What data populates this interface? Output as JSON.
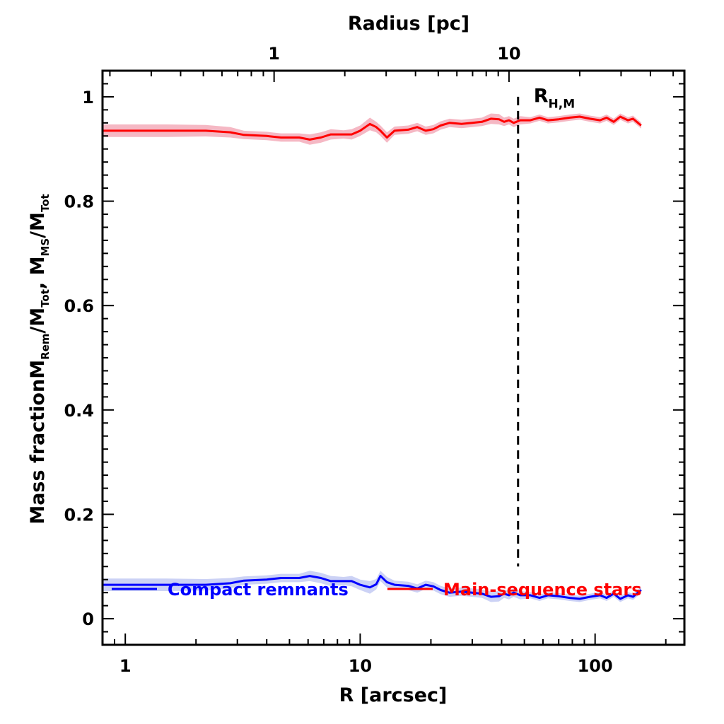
{
  "chart_data": {
    "type": "line",
    "title": "",
    "xlabel": "R [arcsec]",
    "ylabel": "Mass fraction",
    "ylabel_ratio": {
      "rem": {
        "num": "M",
        "num_sub": "Rem",
        "den": "M",
        "den_sub": "Tot"
      },
      "ms": {
        "num": "M",
        "num_sub": "MS",
        "den": "M",
        "den_sub": "Tot"
      }
    },
    "top_xlabel": "Radius [pc]",
    "xscale": "log",
    "xlim": [
      0.8,
      240
    ],
    "ylim": [
      -0.05,
      1.05
    ],
    "top_axis": {
      "arcsec_per_pc": 4.3,
      "tick_values": [
        1,
        10
      ],
      "tick_labels": [
        "1",
        "10"
      ]
    },
    "x_tick_values": [
      1,
      10,
      100
    ],
    "x_tick_labels": [
      "1",
      "10",
      "100"
    ],
    "y_tick_values": [
      0,
      0.2,
      0.4,
      0.6,
      0.8,
      1.0
    ],
    "y_tick_labels": [
      "0",
      "0.2",
      "0.4",
      "0.6",
      "0.8",
      "1"
    ],
    "annotation": {
      "x": 47,
      "main": "R",
      "sub": "H,M",
      "y": 0.96
    },
    "legend_position": "bottom",
    "series": [
      {
        "name": "Main-sequence stars",
        "color": "#ff0000",
        "band_color": "#f5b8c4",
        "x": [
          0.8,
          1.0,
          1.5,
          2.2,
          2.8,
          3.2,
          4.0,
          4.6,
          5.5,
          6.1,
          6.8,
          7.5,
          8.5,
          9.2,
          10.0,
          11.0,
          11.7,
          12.2,
          13.0,
          14.0,
          16.0,
          17.5,
          19.0,
          20.5,
          22.0,
          24.0,
          27.0,
          30.0,
          33.0,
          36.0,
          39.0,
          41.0,
          43.0,
          45.0,
          48.0,
          53.0,
          58.0,
          63.0,
          70.0,
          78.0,
          86.0,
          95.0,
          105.0,
          112.0,
          120.0,
          128.0,
          138.0,
          145.0,
          157.0
        ],
        "y": [
          0.935,
          0.935,
          0.935,
          0.935,
          0.932,
          0.927,
          0.925,
          0.922,
          0.922,
          0.918,
          0.922,
          0.928,
          0.928,
          0.928,
          0.935,
          0.948,
          0.942,
          0.935,
          0.922,
          0.935,
          0.937,
          0.942,
          0.935,
          0.938,
          0.945,
          0.95,
          0.948,
          0.95,
          0.952,
          0.958,
          0.957,
          0.952,
          0.955,
          0.95,
          0.955,
          0.955,
          0.96,
          0.955,
          0.957,
          0.96,
          0.962,
          0.958,
          0.955,
          0.96,
          0.952,
          0.962,
          0.955,
          0.958,
          0.945
        ],
        "band": [
          0.012,
          0.012,
          0.012,
          0.011,
          0.01,
          0.008,
          0.008,
          0.008,
          0.008,
          0.01,
          0.01,
          0.01,
          0.008,
          0.01,
          0.01,
          0.012,
          0.01,
          0.01,
          0.01,
          0.008,
          0.008,
          0.008,
          0.008,
          0.008,
          0.008,
          0.008,
          0.008,
          0.008,
          0.008,
          0.01,
          0.01,
          0.008,
          0.008,
          0.008,
          0.008,
          0.006,
          0.006,
          0.006,
          0.006,
          0.006,
          0.006,
          0.006,
          0.006,
          0.006,
          0.006,
          0.006,
          0.006,
          0.006,
          0.006
        ]
      },
      {
        "name": "Compact remnants",
        "color": "#0000ff",
        "band_color": "#ccd2f5",
        "x": [
          0.8,
          1.0,
          1.5,
          2.2,
          2.8,
          3.2,
          4.0,
          4.6,
          5.5,
          6.1,
          6.8,
          7.5,
          8.5,
          9.2,
          10.0,
          11.0,
          11.7,
          12.2,
          13.0,
          14.0,
          16.0,
          17.5,
          19.0,
          20.5,
          22.0,
          24.0,
          27.0,
          30.0,
          33.0,
          36.0,
          39.0,
          41.0,
          43.0,
          45.0,
          48.0,
          53.0,
          58.0,
          63.0,
          70.0,
          78.0,
          86.0,
          95.0,
          105.0,
          112.0,
          120.0,
          128.0,
          138.0,
          145.0,
          157.0
        ],
        "y": [
          0.065,
          0.065,
          0.065,
          0.065,
          0.068,
          0.073,
          0.075,
          0.078,
          0.078,
          0.082,
          0.078,
          0.072,
          0.072,
          0.072,
          0.065,
          0.06,
          0.066,
          0.082,
          0.07,
          0.065,
          0.063,
          0.058,
          0.065,
          0.062,
          0.055,
          0.05,
          0.052,
          0.05,
          0.048,
          0.042,
          0.043,
          0.048,
          0.045,
          0.05,
          0.045,
          0.045,
          0.04,
          0.045,
          0.043,
          0.04,
          0.038,
          0.042,
          0.045,
          0.04,
          0.048,
          0.038,
          0.045,
          0.042,
          0.055
        ],
        "band": [
          0.012,
          0.012,
          0.012,
          0.011,
          0.01,
          0.008,
          0.008,
          0.008,
          0.008,
          0.01,
          0.01,
          0.01,
          0.008,
          0.01,
          0.01,
          0.012,
          0.01,
          0.01,
          0.01,
          0.008,
          0.008,
          0.008,
          0.008,
          0.008,
          0.008,
          0.008,
          0.008,
          0.008,
          0.008,
          0.01,
          0.01,
          0.008,
          0.008,
          0.008,
          0.008,
          0.006,
          0.006,
          0.006,
          0.006,
          0.006,
          0.006,
          0.006,
          0.006,
          0.006,
          0.006,
          0.006,
          0.006,
          0.006,
          0.006
        ]
      }
    ],
    "reference_lines": [
      {
        "type": "vertical",
        "x": 47,
        "style": "dashed",
        "y_range": [
          0.1,
          1.0
        ]
      }
    ]
  }
}
